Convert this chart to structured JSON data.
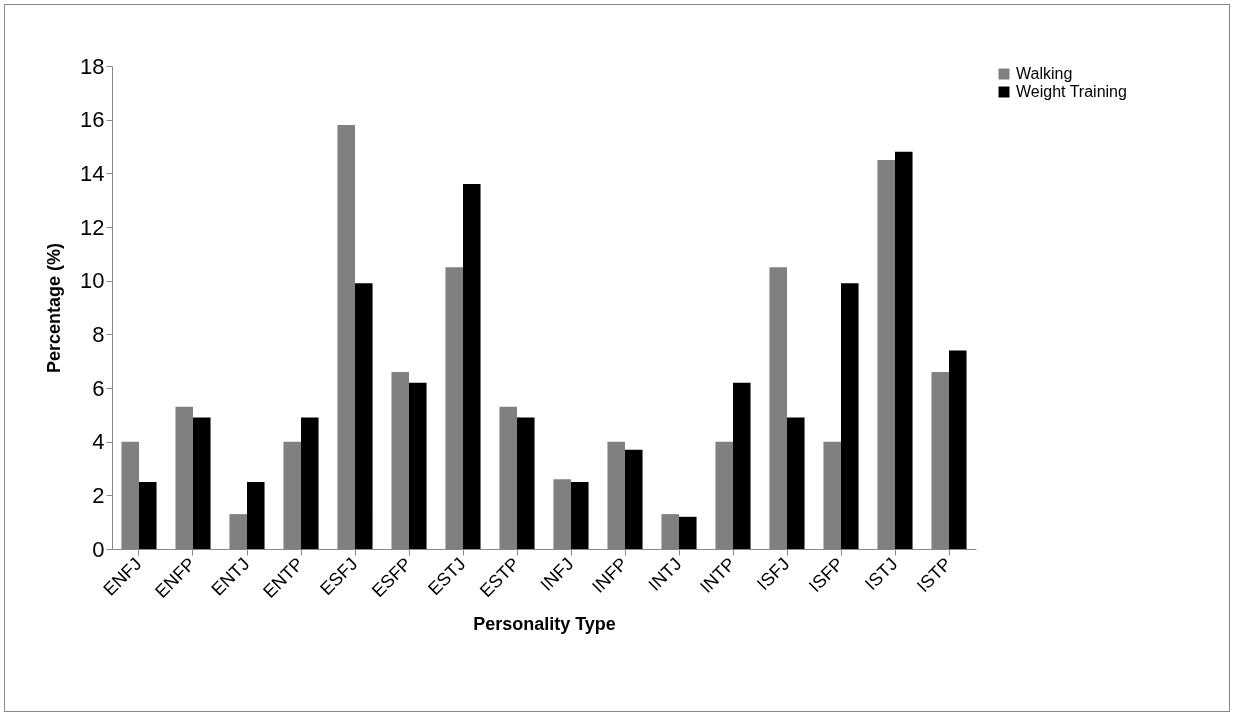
{
  "chart_data": {
    "type": "bar",
    "xlabel": "Personality Type",
    "ylabel": "Percentage (%)",
    "categories": [
      "ENFJ",
      "ENFP",
      "ENTJ",
      "ENTP",
      "ESFJ",
      "ESFP",
      "ESTJ",
      "ESTP",
      "INFJ",
      "INFP",
      "INTJ",
      "INTP",
      "ISFJ",
      "ISFP",
      "ISTJ",
      "ISTP"
    ],
    "series": [
      {
        "name": "Walking",
        "color": "#808080",
        "values": [
          4.0,
          5.3,
          1.3,
          4.0,
          15.8,
          6.6,
          10.5,
          5.3,
          2.6,
          4.0,
          1.3,
          4.0,
          10.5,
          4.0,
          14.5,
          6.6
        ]
      },
      {
        "name": "Weight Training",
        "color": "#000000",
        "values": [
          2.5,
          4.9,
          2.5,
          4.9,
          9.9,
          6.2,
          13.6,
          4.9,
          2.5,
          3.7,
          1.2,
          6.2,
          4.9,
          9.9,
          14.8,
          7.4
        ]
      }
    ],
    "ylim": [
      0,
      18
    ],
    "yticks": [
      0,
      2,
      4,
      6,
      8,
      10,
      12,
      14,
      16,
      18
    ],
    "grid": false,
    "legend": "right"
  }
}
